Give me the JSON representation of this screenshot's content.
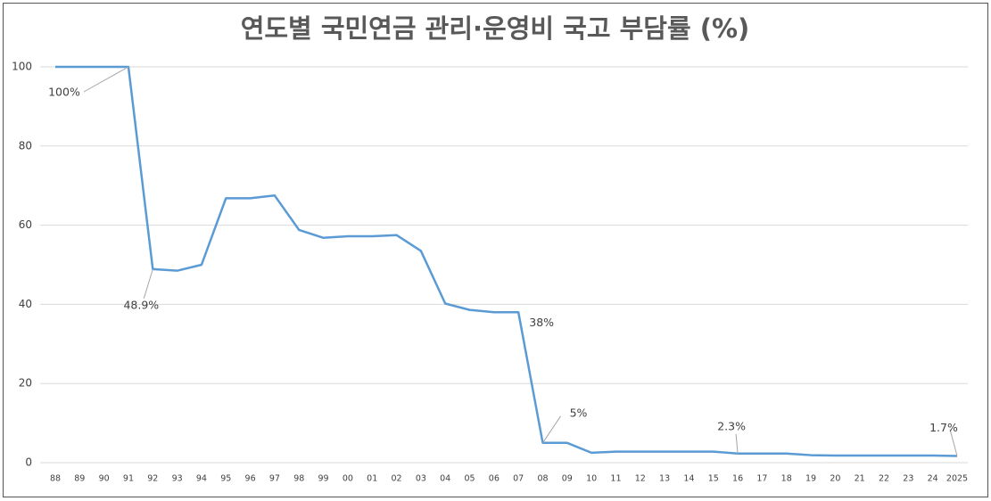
{
  "chart_data": {
    "type": "line",
    "title": "연도별 국민연금 관리·운영비 국고 부담률 (%)",
    "categories": [
      "88",
      "89",
      "90",
      "91",
      "92",
      "93",
      "94",
      "95",
      "96",
      "97",
      "98",
      "99",
      "00",
      "01",
      "02",
      "03",
      "04",
      "05",
      "06",
      "07",
      "08",
      "09",
      "10",
      "11",
      "12",
      "13",
      "14",
      "15",
      "16",
      "17",
      "18",
      "19",
      "20",
      "21",
      "22",
      "23",
      "24",
      "2025"
    ],
    "values": [
      100,
      100,
      100,
      100,
      48.9,
      48.5,
      50,
      66.8,
      66.8,
      67.5,
      58.8,
      56.8,
      57.2,
      57.2,
      57.5,
      53.5,
      40.2,
      38.6,
      38,
      38,
      5,
      5,
      2.5,
      2.8,
      2.8,
      2.8,
      2.8,
      2.8,
      2.3,
      2.3,
      2.3,
      1.9,
      1.8,
      1.8,
      1.8,
      1.8,
      1.8,
      1.7
    ],
    "value_labels": [
      null,
      null,
      null,
      "100%",
      "48.9%",
      null,
      null,
      null,
      null,
      null,
      null,
      null,
      null,
      null,
      null,
      null,
      null,
      null,
      null,
      "38%",
      "5%",
      null,
      null,
      null,
      null,
      null,
      null,
      null,
      "2.3%",
      null,
      null,
      null,
      null,
      null,
      null,
      null,
      null,
      "1.7%"
    ],
    "color": "#5b9bd5",
    "ylim": [
      0,
      100
    ],
    "yticks": [
      0,
      20,
      40,
      60,
      80,
      100
    ],
    "grid": true
  }
}
